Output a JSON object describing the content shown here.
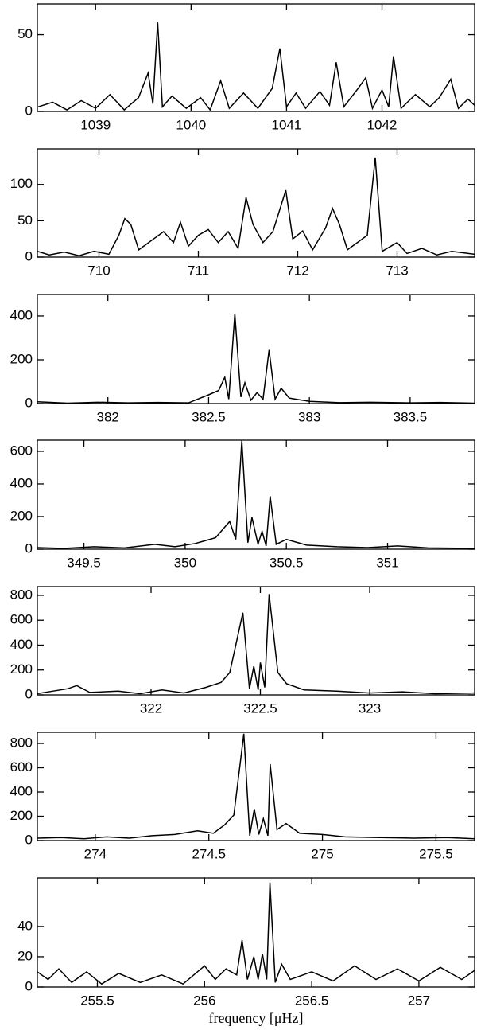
{
  "chart_data": [
    {
      "type": "line",
      "color": "#000000",
      "xlim": [
        1038.39,
        1042.97
      ],
      "ylim": [
        0,
        70
      ],
      "xticks": [
        1039,
        1040,
        1041,
        1042
      ],
      "yticks": [
        0,
        50
      ],
      "x": [
        1038.4,
        1038.55,
        1038.7,
        1038.85,
        1039.0,
        1039.15,
        1039.3,
        1039.45,
        1039.55,
        1039.6,
        1039.65,
        1039.7,
        1039.8,
        1039.95,
        1040.1,
        1040.2,
        1040.31,
        1040.4,
        1040.55,
        1040.7,
        1040.85,
        1040.93,
        1041.0,
        1041.1,
        1041.2,
        1041.35,
        1041.45,
        1041.52,
        1041.6,
        1041.75,
        1041.83,
        1041.9,
        1042.0,
        1042.07,
        1042.12,
        1042.2,
        1042.35,
        1042.5,
        1042.6,
        1042.72,
        1042.8,
        1042.9,
        1042.97
      ],
      "values": [
        3,
        6,
        1,
        7,
        2,
        11,
        1,
        9,
        25,
        5,
        58,
        3,
        10,
        2,
        9,
        1,
        20,
        2,
        12,
        2,
        15,
        41,
        3,
        12,
        2,
        13,
        4,
        32,
        3,
        15,
        22,
        2,
        14,
        3,
        36,
        2,
        11,
        3,
        9,
        21,
        2,
        8,
        4
      ]
    },
    {
      "type": "line",
      "color": "#000000",
      "xlim": [
        709.38,
        713.78
      ],
      "ylim": [
        0,
        149
      ],
      "xticks": [
        710,
        711,
        712,
        713
      ],
      "yticks": [
        0,
        50,
        100
      ],
      "x": [
        709.38,
        709.5,
        709.65,
        709.8,
        709.95,
        710.1,
        710.2,
        710.26,
        710.32,
        710.4,
        710.55,
        710.65,
        710.75,
        710.82,
        710.9,
        711.0,
        711.1,
        711.2,
        711.3,
        711.4,
        711.48,
        711.55,
        711.65,
        711.75,
        711.88,
        711.95,
        712.05,
        712.15,
        712.28,
        712.35,
        712.42,
        712.5,
        712.6,
        712.7,
        712.78,
        712.85,
        713.0,
        713.1,
        713.25,
        713.4,
        713.55,
        713.78
      ],
      "values": [
        8,
        3,
        7,
        2,
        8,
        4,
        30,
        53,
        45,
        10,
        25,
        35,
        20,
        48,
        15,
        30,
        38,
        20,
        35,
        12,
        82,
        45,
        20,
        35,
        92,
        25,
        36,
        10,
        40,
        67,
        45,
        10,
        20,
        30,
        137,
        8,
        20,
        5,
        12,
        3,
        8,
        4
      ]
    },
    {
      "type": "line",
      "color": "#000000",
      "xlim": [
        381.65,
        383.82
      ],
      "ylim": [
        0,
        498
      ],
      "xticks": [
        382,
        382.5,
        383,
        383.5
      ],
      "yticks": [
        0,
        200,
        400
      ],
      "x": [
        381.65,
        381.8,
        381.95,
        382.1,
        382.25,
        382.4,
        382.5,
        382.55,
        382.58,
        382.6,
        382.63,
        382.66,
        382.68,
        382.71,
        382.74,
        382.77,
        382.8,
        382.83,
        382.86,
        382.9,
        383.0,
        383.15,
        383.3,
        383.5,
        383.65,
        383.82
      ],
      "values": [
        8,
        2,
        6,
        3,
        5,
        3,
        40,
        60,
        120,
        20,
        410,
        30,
        95,
        15,
        50,
        20,
        245,
        20,
        70,
        25,
        10,
        4,
        6,
        3,
        5,
        2
      ]
    },
    {
      "type": "line",
      "color": "#000000",
      "xlim": [
        349.27,
        351.43
      ],
      "ylim": [
        0,
        668
      ],
      "xticks": [
        349.5,
        350,
        350.5,
        351
      ],
      "yticks": [
        0,
        200,
        400,
        600
      ],
      "x": [
        349.27,
        349.4,
        349.55,
        349.7,
        349.85,
        349.95,
        350.05,
        350.15,
        350.22,
        350.25,
        350.28,
        350.31,
        350.33,
        350.36,
        350.38,
        350.4,
        350.42,
        350.45,
        350.5,
        350.6,
        350.75,
        350.9,
        351.05,
        351.2,
        351.43
      ],
      "values": [
        10,
        5,
        15,
        8,
        30,
        15,
        35,
        70,
        170,
        60,
        665,
        40,
        195,
        30,
        110,
        20,
        325,
        30,
        60,
        25,
        15,
        10,
        20,
        8,
        5
      ]
    },
    {
      "type": "line",
      "color": "#000000",
      "xlim": [
        321.48,
        323.48
      ],
      "ylim": [
        0,
        870
      ],
      "xticks": [
        322,
        322.5,
        323
      ],
      "yticks": [
        0,
        200,
        400,
        600,
        800
      ],
      "x": [
        321.48,
        321.55,
        321.62,
        321.66,
        321.72,
        321.85,
        321.95,
        322.05,
        322.15,
        322.25,
        322.32,
        322.36,
        322.42,
        322.45,
        322.47,
        322.49,
        322.5,
        322.52,
        322.54,
        322.58,
        322.62,
        322.7,
        322.85,
        323.0,
        323.15,
        323.3,
        323.48
      ],
      "values": [
        10,
        30,
        50,
        75,
        20,
        30,
        10,
        40,
        15,
        60,
        100,
        180,
        660,
        50,
        230,
        40,
        260,
        60,
        810,
        180,
        90,
        40,
        30,
        15,
        25,
        10,
        15
      ]
    },
    {
      "type": "line",
      "color": "#000000",
      "xlim": [
        273.745,
        275.67
      ],
      "ylim": [
        0,
        892
      ],
      "xticks": [
        274,
        274.5,
        275,
        275.5
      ],
      "yticks": [
        0,
        200,
        400,
        600,
        800
      ],
      "x": [
        273.745,
        273.85,
        273.95,
        274.05,
        274.15,
        274.25,
        274.35,
        274.45,
        274.52,
        274.57,
        274.61,
        274.654,
        274.68,
        274.7,
        274.72,
        274.74,
        274.76,
        274.77,
        274.8,
        274.84,
        274.9,
        275.0,
        275.1,
        275.25,
        275.4,
        275.55,
        275.67
      ],
      "values": [
        20,
        25,
        15,
        30,
        20,
        40,
        50,
        80,
        60,
        130,
        210,
        880,
        40,
        260,
        50,
        180,
        40,
        630,
        90,
        140,
        60,
        50,
        30,
        25,
        20,
        25,
        15
      ]
    },
    {
      "type": "line",
      "color": "#000000",
      "xlim": [
        255.22,
        257.26
      ],
      "ylim": [
        0,
        72
      ],
      "xticks": [
        255.5,
        256,
        256.5,
        257
      ],
      "yticks": [
        0,
        20,
        40
      ],
      "xlabel": "frequency [μHz]",
      "x": [
        255.22,
        255.27,
        255.32,
        255.38,
        255.45,
        255.52,
        255.6,
        255.7,
        255.8,
        255.9,
        256.0,
        256.05,
        256.1,
        256.15,
        256.175,
        256.2,
        256.23,
        256.25,
        256.27,
        256.29,
        256.305,
        256.33,
        256.36,
        256.4,
        256.5,
        256.6,
        256.7,
        256.8,
        256.9,
        257.0,
        257.1,
        257.2,
        257.26
      ],
      "values": [
        10,
        5,
        12,
        3,
        10,
        2,
        9,
        3,
        8,
        2,
        14,
        5,
        12,
        8,
        31,
        5,
        20,
        5,
        22,
        5,
        69,
        3,
        15,
        5,
        10,
        4,
        14,
        5,
        12,
        4,
        13,
        5,
        11
      ]
    }
  ]
}
